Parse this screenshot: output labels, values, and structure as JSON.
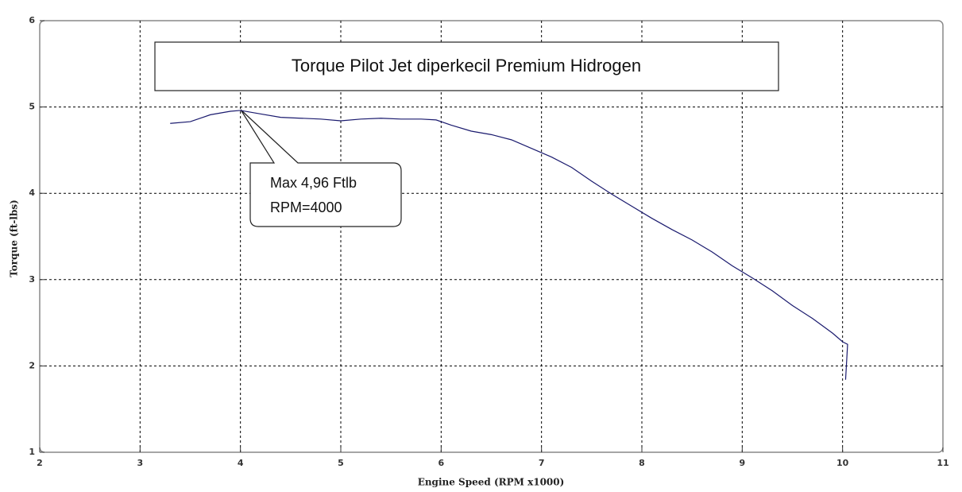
{
  "chart_data": {
    "type": "line",
    "title": "Torque Pilot Jet diperkecil Premium Hidrogen",
    "x_label": "Engine Speed (RPM x1000)",
    "y_label": "Torque (ft-lbs)",
    "annotation": [
      "Max 4,96 Ftlb",
      "RPM=4000"
    ],
    "x": [
      3.3,
      3.5,
      3.7,
      3.9,
      4.0,
      4.2,
      4.4,
      4.6,
      4.8,
      5.0,
      5.2,
      5.4,
      5.6,
      5.8,
      5.95,
      6.1,
      6.3,
      6.5,
      6.7,
      6.9,
      7.1,
      7.3,
      7.5,
      7.7,
      7.9,
      8.1,
      8.3,
      8.5,
      8.7,
      8.9,
      9.1,
      9.3,
      9.5,
      9.7,
      9.9,
      10.0,
      10.05,
      10.03
    ],
    "values": [
      4.81,
      4.83,
      4.91,
      4.95,
      4.96,
      4.92,
      4.88,
      4.87,
      4.86,
      4.84,
      4.86,
      4.87,
      4.86,
      4.86,
      4.85,
      4.79,
      4.72,
      4.68,
      4.62,
      4.52,
      4.42,
      4.3,
      4.14,
      3.99,
      3.85,
      3.71,
      3.58,
      3.46,
      3.32,
      3.16,
      3.02,
      2.87,
      2.7,
      2.55,
      2.38,
      2.28,
      2.25,
      1.84
    ],
    "color": "#1a1a6e",
    "xlim": [
      2,
      11
    ],
    "xticks": [
      2,
      3,
      4,
      5,
      6,
      7,
      8,
      9,
      10,
      11
    ],
    "ylim": [
      1,
      6
    ],
    "yticks": [
      1,
      2,
      3,
      4,
      5,
      6
    ],
    "grid": true
  }
}
